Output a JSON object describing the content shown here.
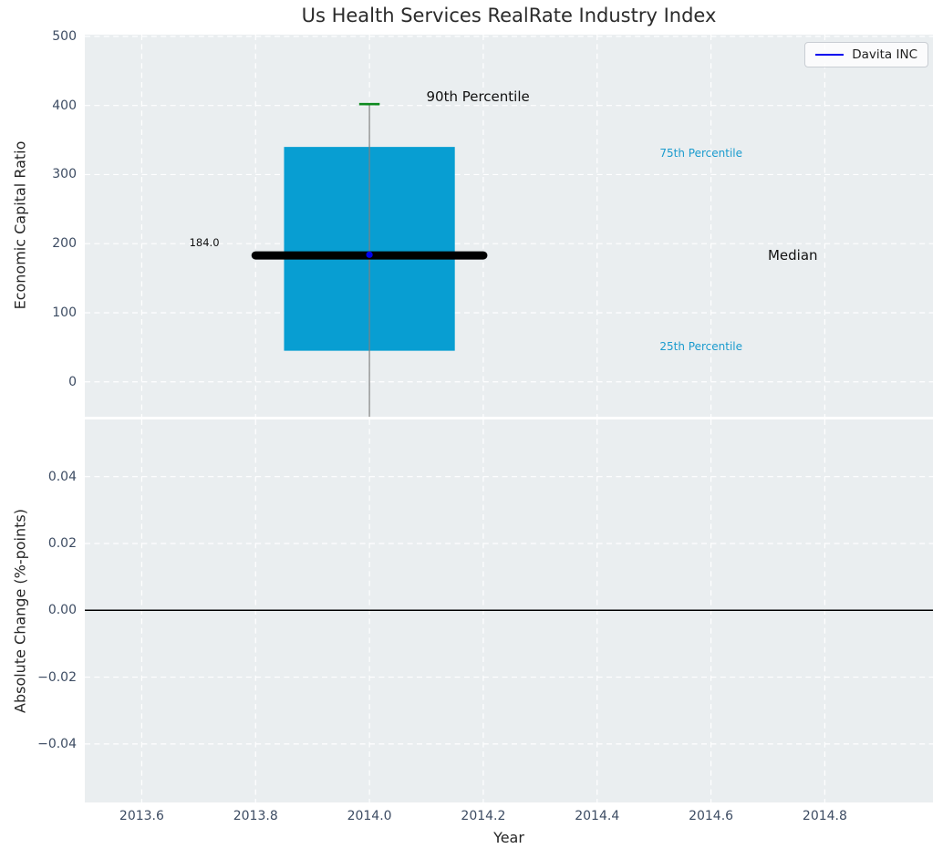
{
  "chart_data": {
    "type": "boxplot",
    "title": "Us Health Services RealRate Industry Index",
    "xlabel": "Year",
    "legend": {
      "position": "upper right",
      "entries": [
        {
          "label": "Davita INC",
          "color": "#0000ee"
        }
      ]
    },
    "x_axis": {
      "lim": [
        2013.5,
        2014.99
      ],
      "ticks": [
        2013.6,
        2013.8,
        2014.0,
        2014.2,
        2014.4,
        2014.6,
        2014.8
      ],
      "tick_labels": [
        "2013.6",
        "2013.8",
        "2014.0",
        "2014.2",
        "2014.4",
        "2014.6",
        "2014.8"
      ]
    },
    "panels": [
      {
        "id": "top",
        "ylabel": "Economic Capital Ratio",
        "ylim": [
          -50.5,
          502.5
        ],
        "yticks": [
          0,
          100,
          200,
          300,
          400,
          500
        ],
        "ytick_labels": [
          "0",
          "100",
          "200",
          "300",
          "400",
          "500"
        ],
        "grid": true,
        "boxplot": {
          "x": 2014.0,
          "q25": 45,
          "median": 183,
          "q75": 340,
          "p90": 402,
          "whisker_low_to": -50.5,
          "box_halfwidth": 0.15,
          "median_halfwidth": 0.2,
          "cap_halfwidth": 0.018
        },
        "series_point": {
          "name": "Davita INC",
          "x": 2014.0,
          "y": 184.0
        },
        "annotations": [
          {
            "text": "184.0",
            "x": 2013.71,
            "y": 202,
            "style": "value",
            "align": "center"
          },
          {
            "text": "90th Percentile",
            "x": 2014.1,
            "y": 413,
            "style": "large",
            "align": "left"
          },
          {
            "text": "75th Percentile",
            "x": 2014.51,
            "y": 331,
            "style": "cyan",
            "align": "left"
          },
          {
            "text": "Median",
            "x": 2014.7,
            "y": 183,
            "style": "large",
            "align": "left"
          },
          {
            "text": "25th Percentile",
            "x": 2014.51,
            "y": 51,
            "style": "cyan",
            "align": "left"
          }
        ]
      },
      {
        "id": "bottom",
        "ylabel": "Absolute Change (%-points)",
        "ylim": [
          -0.0575,
          0.0571
        ],
        "yticks": [
          0.04,
          0.02,
          0.0,
          -0.02,
          -0.04
        ],
        "ytick_labels": [
          "0.04",
          "0.02",
          "0.00",
          "−0.02",
          "−0.04"
        ],
        "grid": true,
        "hline": {
          "y": 0.0,
          "color": "#000000",
          "width": 1.5
        }
      }
    ],
    "colors": {
      "plot_bg": "#eaeef0",
      "grid": "#ffffff",
      "box_fill": "#089ed2",
      "whisker": "#808080",
      "cap_90": "#0d8a1f",
      "median": "#000000",
      "point": "#0000ee",
      "tick_label": "#3d4c63",
      "cyan_text": "#1a9bce",
      "zero_line": "#000000"
    }
  }
}
